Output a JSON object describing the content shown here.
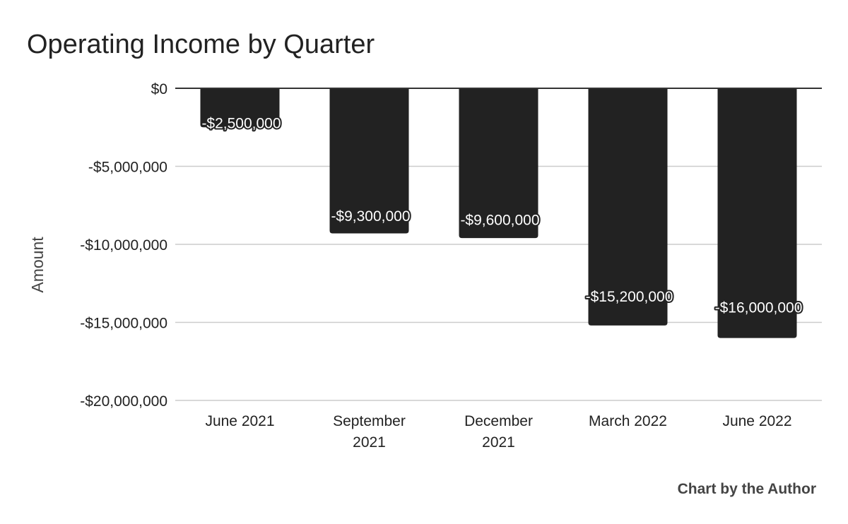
{
  "chart_data": {
    "type": "bar",
    "title": "Operating Income by Quarter",
    "xlabel": "",
    "ylabel": "Amount",
    "categories": [
      "June 2021",
      "September 2021",
      "December 2021",
      "March 2022",
      "June 2022"
    ],
    "category_lines": [
      [
        "June 2021"
      ],
      [
        "September",
        "2021"
      ],
      [
        "December",
        "2021"
      ],
      [
        "March 2022"
      ],
      [
        "June 2022"
      ]
    ],
    "values": [
      -2500000,
      -9300000,
      -9600000,
      -15200000,
      -16000000
    ],
    "value_labels": [
      "-$2,500,000",
      "-$9,300,000",
      "-$9,600,000",
      "-$15,200,000",
      "-$16,000,000"
    ],
    "ylim": [
      -20000000,
      0
    ],
    "yticks": [
      0,
      -5000000,
      -10000000,
      -15000000,
      -20000000
    ],
    "ytick_labels": [
      "$0",
      "-$5,000,000",
      "-$10,000,000",
      "-$15,000,000",
      "-$20,000,000"
    ],
    "grid": true,
    "bar_color": "#222222",
    "grid_color": "#cccccc",
    "zero_line_color": "#333333",
    "credit": "Chart by the Author"
  }
}
